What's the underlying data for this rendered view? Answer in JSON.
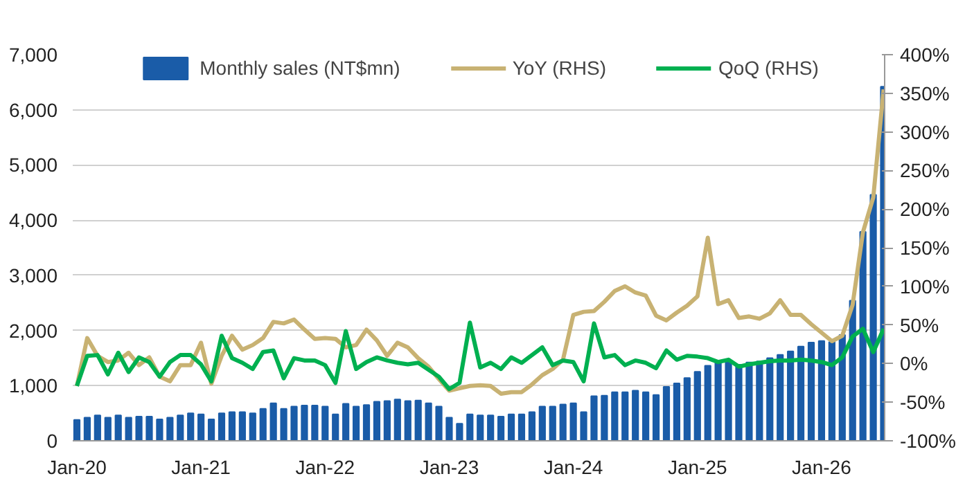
{
  "chart_data": {
    "type": "bar",
    "categories": [
      "Jan-20",
      null,
      null,
      null,
      null,
      null,
      null,
      null,
      null,
      null,
      null,
      null,
      "Jan-21",
      null,
      null,
      null,
      null,
      null,
      null,
      null,
      null,
      null,
      null,
      null,
      "Jan-22",
      null,
      null,
      null,
      null,
      null,
      null,
      null,
      null,
      null,
      null,
      null,
      "Jan-23",
      null,
      null,
      null,
      null,
      null,
      null,
      null,
      null,
      null,
      null,
      null,
      "Jan-24",
      null,
      null,
      null,
      null,
      null,
      null,
      null,
      null,
      null,
      null,
      null,
      "Jan-25",
      null,
      null,
      null,
      null,
      null,
      null,
      null,
      null,
      null,
      null,
      null,
      "Jan-26",
      null,
      null,
      null,
      null,
      null,
      null
    ],
    "series": [
      {
        "name": "Monthly sales (NT$mn)",
        "color": "#1a5ca8",
        "values": [
          380,
          420,
          460,
          420,
          460,
          420,
          440,
          440,
          390,
          420,
          460,
          500,
          480,
          390,
          500,
          520,
          520,
          500,
          580,
          680,
          580,
          620,
          640,
          640,
          620,
          480,
          670,
          620,
          650,
          710,
          720,
          750,
          720,
          730,
          680,
          620,
          420,
          310,
          480,
          460,
          460,
          440,
          480,
          480,
          520,
          620,
          620,
          660,
          680,
          520,
          810,
          820,
          880,
          880,
          910,
          880,
          830,
          980,
          1040,
          1140,
          1250,
          1360,
          1420,
          1460,
          1380,
          1420,
          1440,
          1500,
          1560,
          1620,
          1710,
          1780,
          1810,
          1790,
          1920,
          2540,
          3790,
          4460,
          6420
        ]
      },
      {
        "name": "YoY (RHS)",
        "type": "line",
        "axis": "y2",
        "color": "#c8b273",
        "values": [
          -29,
          33,
          10,
          2,
          4,
          14,
          -2,
          8,
          -17,
          -23,
          -2,
          -2,
          27,
          -26,
          10,
          36,
          18,
          24,
          33,
          54,
          52,
          57,
          44,
          32,
          33,
          32,
          21,
          24,
          44,
          30,
          10,
          27,
          21,
          7,
          -4,
          -20,
          -35,
          -32,
          -29,
          -28,
          -29,
          -39,
          -37,
          -37,
          -27,
          -15,
          -7,
          5,
          63,
          67,
          68,
          80,
          94,
          100,
          92,
          88,
          62,
          56,
          66,
          75,
          87,
          163,
          77,
          82,
          59,
          61,
          58,
          65,
          82,
          63,
          63,
          51,
          40,
          29,
          36,
          76,
          170,
          215,
          355
        ]
      },
      {
        "name": "QoQ (RHS)",
        "type": "line",
        "axis": "y2",
        "color": "#00b050",
        "values": [
          -29,
          10,
          11,
          -14,
          14,
          -11,
          8,
          2,
          -17,
          2,
          11,
          11,
          -1,
          -23,
          36,
          7,
          1,
          -7,
          15,
          17,
          -19,
          7,
          4,
          4,
          -2,
          -25,
          42,
          -7,
          2,
          8,
          4,
          1,
          -1,
          1,
          -8,
          -17,
          -33,
          -25,
          53,
          -5,
          1,
          -7,
          8,
          1,
          11,
          21,
          -2,
          4,
          2,
          -23,
          52,
          8,
          11,
          -2,
          4,
          1,
          -6,
          17,
          5,
          10,
          9,
          7,
          2,
          5,
          -4,
          -1,
          1,
          3,
          4,
          4,
          5,
          4,
          2,
          -2,
          8,
          35,
          45,
          15,
          45
        ]
      }
    ],
    "ylim": [
      0,
      7000
    ],
    "yticks": [
      {
        "value": 0,
        "label": "0"
      },
      {
        "value": 1000,
        "label": "1,000"
      },
      {
        "value": 2000,
        "label": "2,000"
      },
      {
        "value": 3000,
        "label": "3,000"
      },
      {
        "value": 4000,
        "label": "4,000"
      },
      {
        "value": 5000,
        "label": "5,000"
      },
      {
        "value": 6000,
        "label": "6,000"
      },
      {
        "value": 7000,
        "label": "7,000"
      }
    ],
    "y2lim": [
      -100,
      400
    ],
    "y2ticks": [
      {
        "value": -100,
        "label": "-100%"
      },
      {
        "value": -50,
        "label": "-50%"
      },
      {
        "value": 0,
        "label": "0%"
      },
      {
        "value": 50,
        "label": "50%"
      },
      {
        "value": 100,
        "label": "100%"
      },
      {
        "value": 150,
        "label": "150%"
      },
      {
        "value": 200,
        "label": "200%"
      },
      {
        "value": 250,
        "label": "250%"
      },
      {
        "value": 300,
        "label": "300%"
      },
      {
        "value": 350,
        "label": "350%"
      },
      {
        "value": 400,
        "label": "400%"
      }
    ],
    "grid": "y",
    "legend": "top",
    "line_style": "solid"
  }
}
